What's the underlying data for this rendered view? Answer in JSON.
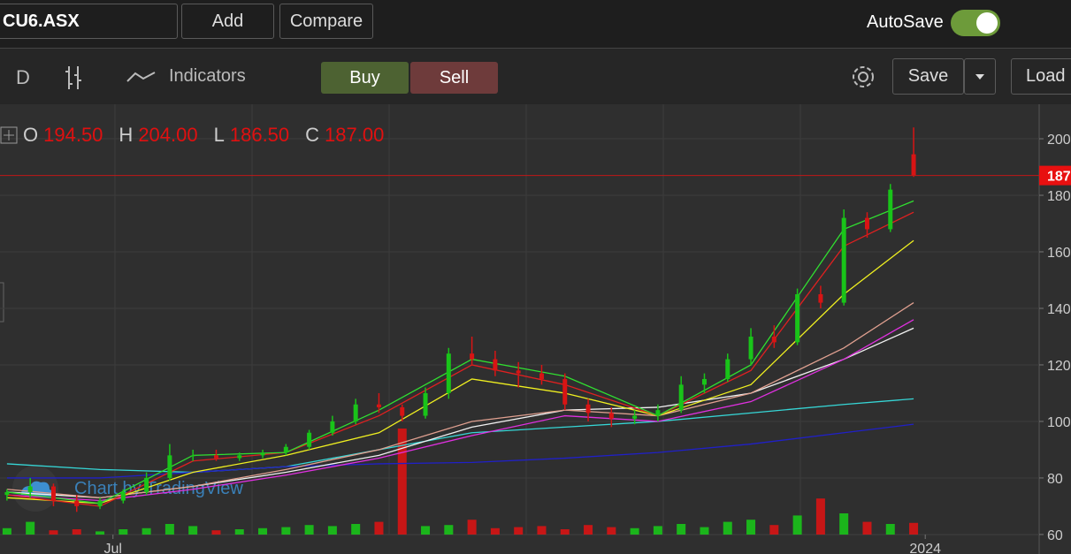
{
  "toolbar": {
    "symbol": "CU6.ASX",
    "add": "Add",
    "compare": "Compare",
    "autosave": "AutoSave"
  },
  "toolbar2": {
    "interval": "D",
    "indicators": "Indicators",
    "buy": "Buy",
    "sell": "Sell",
    "save": "Save",
    "load": "Load"
  },
  "legend": {
    "o_label": "O",
    "o": "194.50",
    "h_label": "H",
    "h": "204.00",
    "l_label": "L",
    "l": "186.50",
    "c_label": "C",
    "c": "187.00"
  },
  "watermark": "Chart by TradingView",
  "chart_data": {
    "type": "candlestick",
    "up_color": "#19c419",
    "down_color": "#d81414",
    "candles": [
      [
        74,
        76,
        72,
        75
      ],
      [
        75,
        80,
        73,
        77
      ],
      [
        77,
        78,
        70,
        72
      ],
      [
        72,
        74,
        68,
        70
      ],
      [
        70,
        73,
        69,
        72
      ],
      [
        72,
        76,
        71,
        75
      ],
      [
        75,
        82,
        74,
        80
      ],
      [
        80,
        92,
        79,
        88
      ],
      [
        88,
        90,
        86,
        88
      ],
      [
        88,
        90,
        86,
        87
      ],
      [
        87,
        89,
        86,
        88
      ],
      [
        88,
        90,
        87,
        89
      ],
      [
        89,
        92,
        88,
        91
      ],
      [
        91,
        97,
        90,
        96
      ],
      [
        96,
        102,
        95,
        100
      ],
      [
        100,
        108,
        99,
        106
      ],
      [
        106,
        110,
        103,
        105
      ],
      [
        105,
        106,
        100,
        102
      ],
      [
        102,
        112,
        101,
        110
      ],
      [
        110,
        126,
        108,
        124
      ],
      [
        124,
        130,
        120,
        122
      ],
      [
        122,
        125,
        116,
        118
      ],
      [
        118,
        121,
        112,
        117
      ],
      [
        117,
        120,
        113,
        115
      ],
      [
        115,
        117,
        104,
        106
      ],
      [
        106,
        108,
        100,
        103
      ],
      [
        103,
        105,
        98,
        101
      ],
      [
        101,
        104,
        99,
        102
      ],
      [
        102,
        106,
        100,
        104
      ],
      [
        104,
        116,
        103,
        113
      ],
      [
        113,
        117,
        110,
        115
      ],
      [
        115,
        124,
        114,
        122
      ],
      [
        122,
        133,
        120,
        130
      ],
      [
        130,
        134,
        126,
        128
      ],
      [
        128,
        147,
        127,
        145
      ],
      [
        145,
        148,
        140,
        142
      ],
      [
        142,
        175,
        141,
        172
      ],
      [
        172,
        174,
        165,
        168
      ],
      [
        168,
        184,
        167,
        182
      ],
      [
        194.5,
        204,
        186.5,
        187
      ]
    ],
    "volume": [
      6,
      12,
      4,
      5,
      3,
      5,
      6,
      10,
      8,
      4,
      5,
      6,
      7,
      9,
      8,
      10,
      12,
      100,
      8,
      9,
      14,
      6,
      7,
      8,
      5,
      9,
      7,
      6,
      8,
      10,
      7,
      12,
      14,
      9,
      18,
      34,
      20,
      12,
      10,
      11
    ],
    "volume_ylim": [
      0,
      105
    ],
    "last_price_label": "187",
    "moving_averages": [
      {
        "color": "#36d6d6",
        "x": [
          0,
          4,
          8,
          12,
          16,
          20,
          24,
          28,
          32,
          36,
          39
        ],
        "values": [
          85,
          83,
          82,
          84,
          90,
          96,
          98,
          100,
          103,
          106,
          108
        ]
      },
      {
        "color": "#2020c8",
        "x": [
          0,
          4,
          8,
          12,
          16,
          20,
          24,
          28,
          32,
          36,
          39
        ],
        "values": [
          80,
          80,
          82,
          84,
          85,
          85.5,
          87,
          89,
          92,
          96,
          99
        ]
      },
      {
        "color": "#f0f0f0",
        "x": [
          0,
          4,
          8,
          12,
          16,
          20,
          24,
          28,
          32,
          36,
          39
        ],
        "values": [
          75,
          73,
          77,
          82,
          88,
          98,
          104,
          105,
          110,
          122,
          133
        ]
      },
      {
        "color": "#e030e0",
        "x": [
          0,
          4,
          8,
          12,
          16,
          20,
          24,
          28,
          32,
          36,
          39
        ],
        "values": [
          74,
          72,
          76,
          81,
          87,
          95,
          102,
          100,
          107,
          122,
          136
        ]
      },
      {
        "color": "#e0a090",
        "x": [
          0,
          4,
          8,
          12,
          16,
          20,
          24,
          28,
          32,
          36,
          39
        ],
        "values": [
          76,
          73,
          77,
          83,
          90,
          100,
          104,
          102,
          110,
          126,
          142
        ]
      },
      {
        "color": "#f0f020",
        "x": [
          0,
          4,
          8,
          12,
          16,
          20,
          24,
          28,
          32,
          36,
          39
        ],
        "values": [
          73,
          71,
          82,
          88,
          96,
          115,
          110,
          102,
          113,
          145,
          164
        ]
      },
      {
        "color": "#e02020",
        "x": [
          0,
          4,
          8,
          12,
          16,
          20,
          24,
          28,
          32,
          36,
          39
        ],
        "values": [
          74,
          70,
          86,
          89,
          102,
          120,
          113,
          102,
          118,
          162,
          174
        ]
      },
      {
        "color": "#30e030",
        "x": [
          0,
          4,
          8,
          12,
          16,
          20,
          24,
          28,
          32,
          36,
          39
        ],
        "values": [
          75,
          71,
          88,
          89,
          104,
          122,
          116,
          102,
          120,
          168,
          178
        ]
      }
    ],
    "xlim": [
      -0.3,
      44.4
    ],
    "xticks": [
      {
        "value": 4.56,
        "label": "Jul"
      },
      {
        "value": 39.5,
        "label": "2024"
      }
    ],
    "ylim": [
      53.1,
      212.2
    ],
    "yticks": [
      200,
      180,
      160,
      140,
      120,
      100,
      80,
      60
    ],
    "grid": true
  }
}
